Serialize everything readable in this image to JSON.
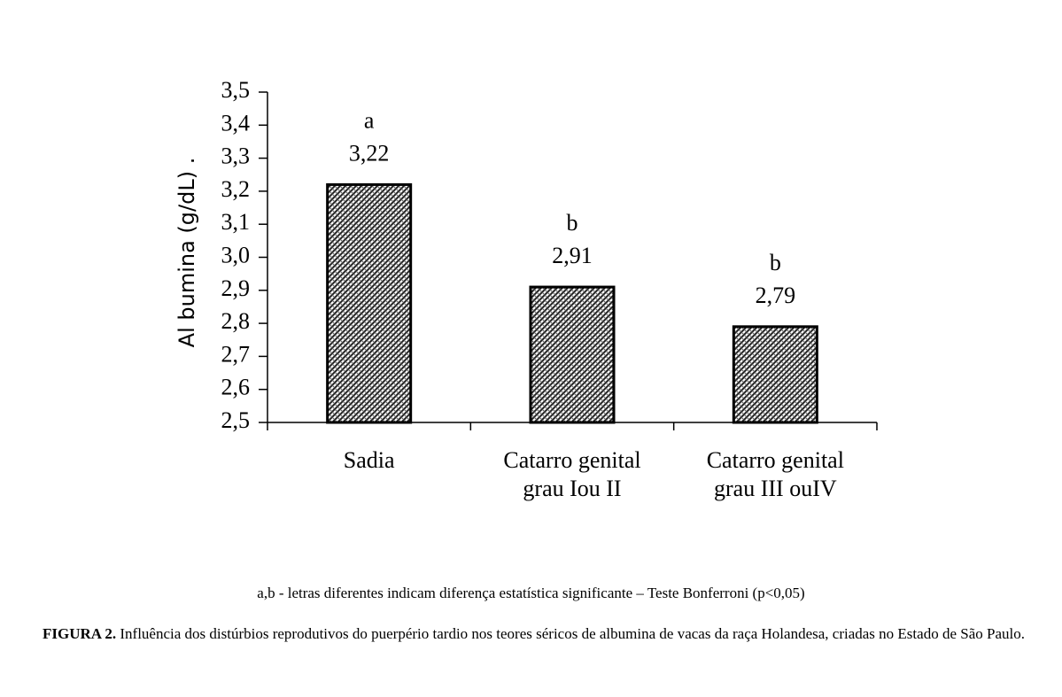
{
  "chart_data": {
    "type": "bar",
    "y_label": "Al bumina (g/dL)  .",
    "categories": [
      "Sadia",
      "Catarro genital\ngrau Iou II",
      "Catarro genital\ngrau III ouIV"
    ],
    "values": [
      3.22,
      2.91,
      2.79
    ],
    "value_labels": [
      "3,22",
      "2,91",
      "2,79"
    ],
    "letters": [
      "a",
      "b",
      "b"
    ],
    "color": "#333333",
    "ylim": [
      2.5,
      3.5
    ],
    "yticks": [
      {
        "value": 2.5,
        "label": "2,5"
      },
      {
        "value": 2.6,
        "label": "2,6"
      },
      {
        "value": 2.7,
        "label": "2,7"
      },
      {
        "value": 2.8,
        "label": "2,8"
      },
      {
        "value": 2.9,
        "label": "2,9"
      },
      {
        "value": 3.0,
        "label": "3,0"
      },
      {
        "value": 3.1,
        "label": "3,1"
      },
      {
        "value": 3.2,
        "label": "3,2"
      },
      {
        "value": 3.3,
        "label": "3,3"
      },
      {
        "value": 3.4,
        "label": "3,4"
      },
      {
        "value": 3.5,
        "label": "3,5"
      }
    ],
    "grid": false
  },
  "footnote": "a,b - letras diferentes indicam diferença estatística significante – Teste Bonferroni (p<0,05)",
  "caption": {
    "label": "FIGURA 2.",
    "text": "Influência dos distúrbios reprodutivos do puerpério tardio nos teores séricos de albumina de vacas da raça Holandesa, criadas no Estado de São Paulo."
  }
}
